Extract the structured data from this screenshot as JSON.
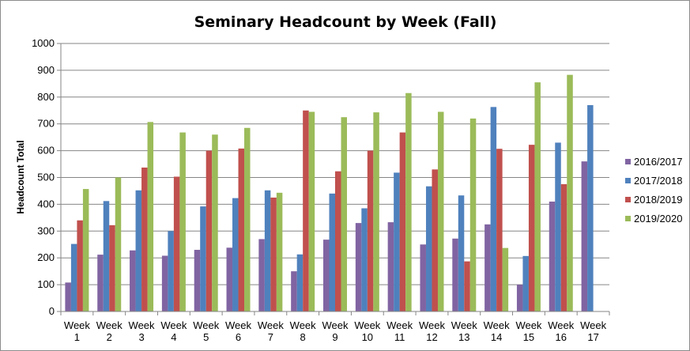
{
  "chart_data": {
    "type": "bar",
    "title": "Seminary Headcount by Week (Fall)",
    "xlabel": "",
    "ylabel": "Headcount Total",
    "ylim": [
      0,
      1000
    ],
    "yticks": [
      "0",
      "100",
      "200",
      "300",
      "400",
      "500",
      "600",
      "700",
      "800",
      "900",
      "1000"
    ],
    "grid": true,
    "legend_position": "right",
    "categories": [
      [
        "Week",
        "1"
      ],
      [
        "Week",
        "2"
      ],
      [
        "Week",
        "3"
      ],
      [
        "Week",
        "4"
      ],
      [
        "Week",
        "5"
      ],
      [
        "Week",
        "6"
      ],
      [
        "Week",
        "7"
      ],
      [
        "Week",
        "8"
      ],
      [
        "Week",
        "9"
      ],
      [
        "Week",
        "10"
      ],
      [
        "Week",
        "11"
      ],
      [
        "Week",
        "12"
      ],
      [
        "Week",
        "13"
      ],
      [
        "Week",
        "14"
      ],
      [
        "Week",
        "15"
      ],
      [
        "Week",
        "16"
      ],
      [
        "Week",
        "17"
      ]
    ],
    "series": [
      {
        "name": "2016/2017",
        "color": "#8064A2",
        "values": [
          108,
          212,
          228,
          208,
          230,
          238,
          270,
          150,
          268,
          330,
          333,
          250,
          272,
          325,
          100,
          410,
          560
        ]
      },
      {
        "name": "2017/2018",
        "color": "#4F81BD",
        "values": [
          252,
          412,
          452,
          300,
          392,
          423,
          452,
          213,
          440,
          385,
          518,
          467,
          433,
          763,
          207,
          630,
          770
        ]
      },
      {
        "name": "2018/2019",
        "color": "#C0504D",
        "values": [
          340,
          322,
          537,
          503,
          600,
          608,
          425,
          750,
          523,
          600,
          668,
          530,
          187,
          607,
          622,
          475,
          null
        ]
      },
      {
        "name": "2019/2020",
        "color": "#9BBB59",
        "values": [
          457,
          500,
          707,
          668,
          660,
          685,
          443,
          745,
          725,
          743,
          815,
          745,
          720,
          237,
          855,
          883,
          null
        ]
      }
    ]
  }
}
